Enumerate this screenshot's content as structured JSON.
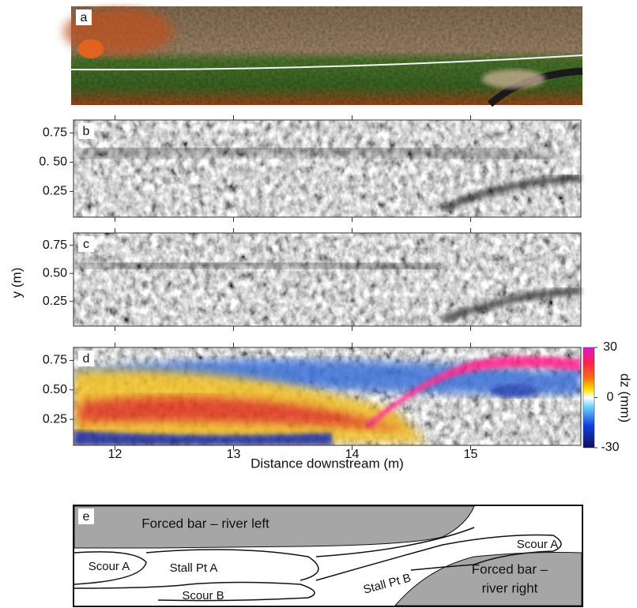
{
  "panels": [
    {
      "label": "a"
    },
    {
      "label": "b",
      "yticks": [
        0.75,
        {
          "value": 0.5,
          "label": "0. 50"
        },
        0.25
      ]
    },
    {
      "label": "c",
      "yticks": [
        0.75,
        {
          "value": 0.5,
          "label": "0.50"
        },
        0.25
      ]
    },
    {
      "label": "d",
      "yticks": [
        0.75,
        {
          "value": 0.5,
          "label": "0.50"
        },
        0.25
      ]
    }
  ],
  "ylim": [
    0.03,
    0.86
  ],
  "y_axis_label": "y (m)",
  "xlim": [
    11.65,
    15.93
  ],
  "xticks": [
    12,
    13,
    14,
    15
  ],
  "x_axis_label": "Distance downstream (m)",
  "colorbar": {
    "label": "dz (mm)",
    "lim": [
      -30,
      30
    ],
    "ticks": [
      30,
      0,
      -30
    ]
  },
  "map": {
    "label": "e",
    "regions": [
      "Forced bar – river left",
      "Scour A",
      "Stall Pt A",
      "Scour B",
      "Stall Pt B",
      "Scour A",
      "Forced bar –",
      "river right"
    ]
  }
}
